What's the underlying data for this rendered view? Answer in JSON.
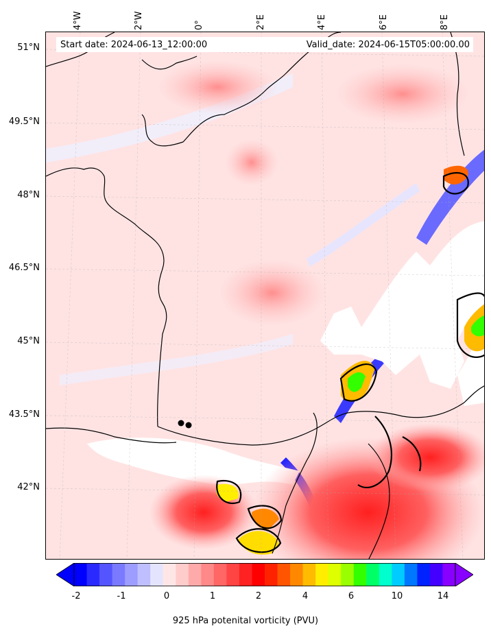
{
  "header": {
    "start_date": "Start date: 2024-06-13_12:00:00",
    "valid_date": "Valid_date: 2024-06-15T05:00:00.00"
  },
  "axes": {
    "lon_labels": [
      "4°W",
      "2°W",
      "0°",
      "2°E",
      "4°E",
      "6°E",
      "8°E"
    ],
    "lat_labels": [
      "51°N",
      "49.5°N",
      "48°N",
      "46.5°N",
      "45°N",
      "43.5°N",
      "42°N"
    ]
  },
  "colorbar": {
    "label": "925 hPa potenital vorticity (PVU)",
    "ticks": [
      "-2",
      "-1",
      "0",
      "1",
      "2",
      "4",
      "6",
      "10",
      "14"
    ],
    "extend": "both",
    "colors": [
      "#0000ff",
      "#2a2aff",
      "#5555ff",
      "#7a7aff",
      "#9d9dff",
      "#bfbfff",
      "#e4e4ff",
      "#ffe6e6",
      "#ffcccc",
      "#ffaaaa",
      "#ff8888",
      "#ff6666",
      "#ff4444",
      "#ff2222",
      "#ff0000",
      "#ff2200",
      "#ff5500",
      "#ff8800",
      "#ffbb00",
      "#ffee00",
      "#ddff00",
      "#99ff00",
      "#33ff00",
      "#00ff66",
      "#00ffcc",
      "#00ccff",
      "#0077ff",
      "#0022ff",
      "#4400ff",
      "#8800ff"
    ]
  },
  "map": {
    "background_color": "#ffe3e3",
    "coastline_color": "#000000",
    "missing_color": "#ffffff"
  }
}
